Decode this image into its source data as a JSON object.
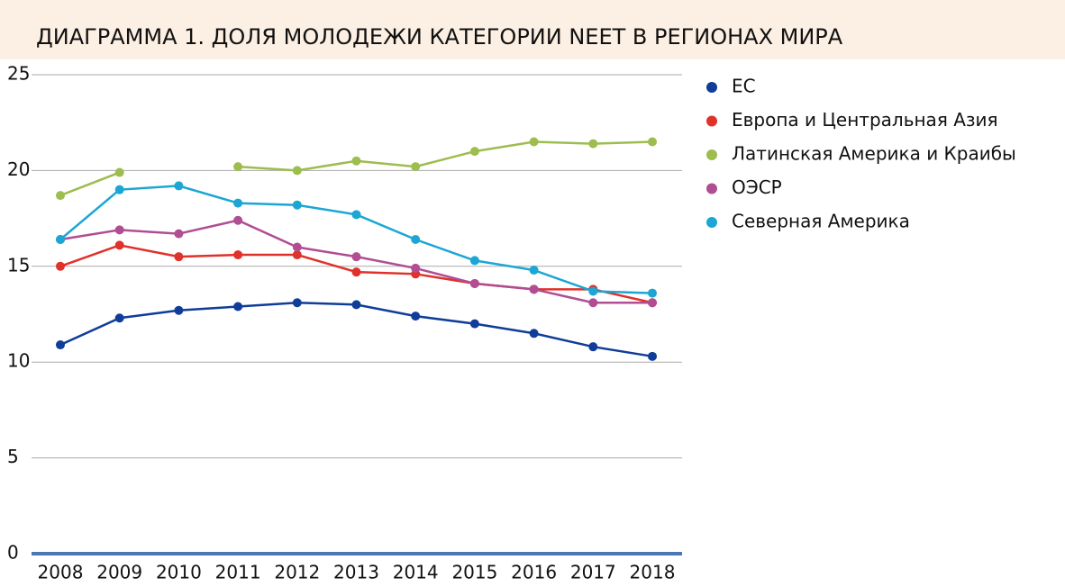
{
  "chart_data": {
    "type": "line",
    "title": "ДИАГРАММА 1. ДОЛЯ МОЛОДЕЖИ КАТЕГОРИИ NEET  В РЕГИОНАХ МИРА",
    "x": [
      "2008",
      "2009",
      "2010",
      "2011",
      "2012",
      "2013",
      "2014",
      "2015",
      "2016",
      "2017",
      "2018"
    ],
    "series": [
      {
        "name": "ЕС",
        "color": "#0f3d99",
        "values": [
          10.9,
          12.3,
          12.7,
          12.9,
          13.1,
          13.0,
          12.4,
          12.0,
          11.5,
          10.8,
          10.3
        ]
      },
      {
        "name": "Европа и Центральная Азия",
        "color": "#e0312a",
        "values": [
          15.0,
          16.1,
          15.5,
          15.6,
          15.6,
          14.7,
          14.6,
          14.1,
          13.8,
          13.8,
          13.1
        ]
      },
      {
        "name": "Латинская Америка и Краибы",
        "color": "#9dbd4f",
        "values": [
          18.7,
          19.9,
          null,
          20.2,
          20.0,
          20.5,
          20.2,
          21.0,
          21.5,
          21.4,
          21.5
        ]
      },
      {
        "name": "ОЭСР",
        "color": "#b04d93",
        "values": [
          16.4,
          16.9,
          16.7,
          17.4,
          16.0,
          15.5,
          14.9,
          14.1,
          13.8,
          13.1,
          13.1
        ]
      },
      {
        "name": "Северная Америка",
        "color": "#1ba6d4",
        "values": [
          16.4,
          19.0,
          19.2,
          18.3,
          18.2,
          17.7,
          16.4,
          15.3,
          14.8,
          13.7,
          13.6
        ]
      }
    ],
    "ylim": [
      0,
      25
    ],
    "yticks": [
      0,
      5,
      10,
      15,
      20,
      25
    ],
    "grid": true,
    "legend": "right"
  }
}
